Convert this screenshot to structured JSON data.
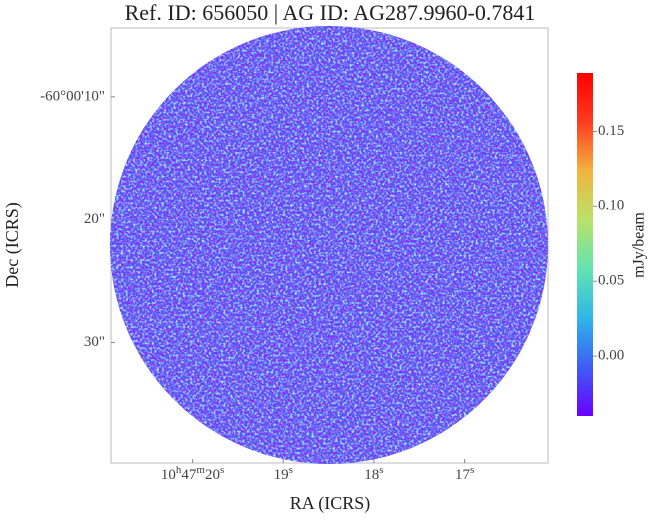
{
  "chart_data": {
    "type": "image",
    "title": "Ref. ID: 656050 | AG ID: AG287.9960-0.7841",
    "x_label": "RA (ICRS)",
    "y_label": "Dec (ICRS)",
    "colorbar_label": "mJy/beam",
    "xlim": [
      20.9,
      16.08
    ],
    "xticks": [
      {
        "value": 20,
        "label": "10h47m20s"
      },
      {
        "value": 19,
        "label": "19s"
      },
      {
        "value": 18,
        "label": "18s"
      },
      {
        "value": 17,
        "label": "17s"
      }
    ],
    "ylim": [
      -4.4,
      -39.8
    ],
    "yticks": [
      {
        "value": -10,
        "label": "-60°00'10\""
      },
      {
        "value": -20,
        "label": "20\""
      },
      {
        "value": -30,
        "label": "30\""
      }
    ],
    "clim": [
      -0.04,
      0.189
    ],
    "cticks": [
      {
        "value": 0,
        "label": "0.00"
      },
      {
        "value": 0.05,
        "label": "0.05"
      },
      {
        "value": 0.1,
        "label": "0.10"
      },
      {
        "value": 0.15,
        "label": "0.15"
      }
    ],
    "colormap": [
      "#6a00ff",
      "#3f5df5",
      "#2fb6e8",
      "#63e3b0",
      "#b8e36a",
      "#f2b43f",
      "#ff3b1f",
      "#ff0000"
    ]
  }
}
